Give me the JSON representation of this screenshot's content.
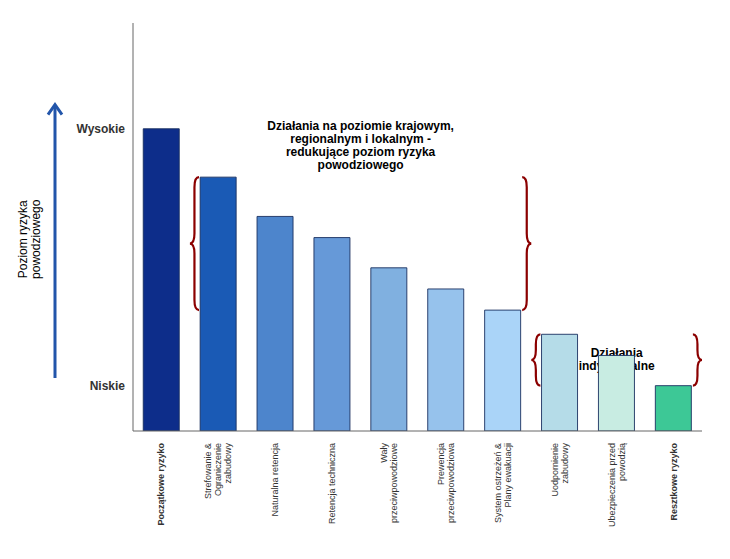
{
  "chart_data": {
    "type": "bar",
    "categories": [
      "Początkowe ryzyko",
      "Strefowanie &\nOgraniczenie\nzabudowy",
      "Naturalna retencja",
      "Retencja techniczna",
      "Wały\nprzeciwpowodziowe",
      "Prewencja\nprzeciwpowodziowa",
      "System ostrzeżeń &\nPlany ewakuacji",
      "Uodpornienie\nzabudowy",
      "Ubezpieczenia przed\npowodzią",
      "Resztkowe ryzyko"
    ],
    "values": [
      10.0,
      8.4,
      7.1,
      6.4,
      5.4,
      4.7,
      4.0,
      3.2,
      2.5,
      1.5
    ],
    "colors": [
      "#0d2d8a",
      "#1a5ab5",
      "#4d85cc",
      "#6699d8",
      "#80b0e0",
      "#96c2ec",
      "#aad4f8",
      "#b5dce8",
      "#c8ece2",
      "#3dc896"
    ],
    "ylabel": "Poziom ryzyka\npowodziowego",
    "ylim": [
      0,
      13.5
    ],
    "yticks": [
      {
        "value": 10.0,
        "label": "Wysokie"
      },
      {
        "value": 1.5,
        "label": "Niskie"
      }
    ],
    "grid": false,
    "annotations": [
      "Działania na poziomie krajowym,\nregionalnym i lokalnym -\nredukujące poziom ryzyka\npowodziowego",
      "Działania\nindywidualne"
    ]
  }
}
